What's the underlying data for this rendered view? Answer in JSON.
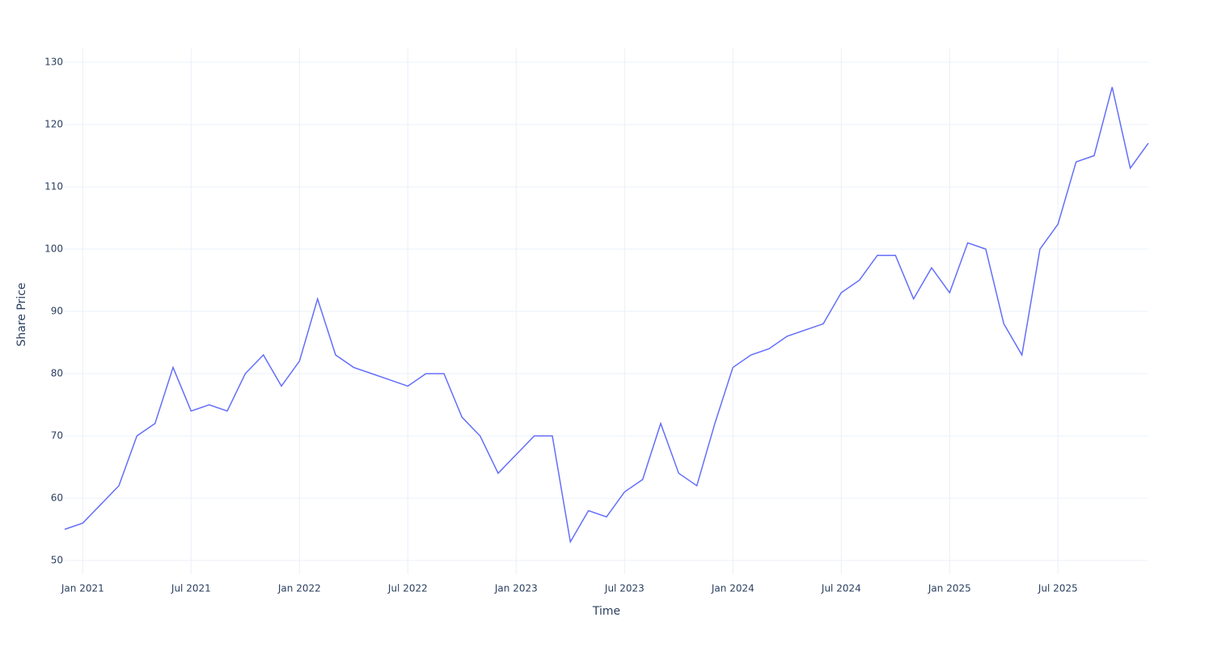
{
  "chart_data": {
    "type": "line",
    "x_label": "Time",
    "y_label": "Share Price",
    "x": [
      "2020-12",
      "2021-01",
      "2021-02",
      "2021-03",
      "2021-04",
      "2021-05",
      "2021-06",
      "2021-07",
      "2021-08",
      "2021-09",
      "2021-10",
      "2021-11",
      "2021-12",
      "2022-01",
      "2022-02",
      "2022-03",
      "2022-04",
      "2022-05",
      "2022-06",
      "2022-07",
      "2022-08",
      "2022-09",
      "2022-10",
      "2022-11",
      "2022-12",
      "2023-01",
      "2023-02",
      "2023-03",
      "2023-04",
      "2023-05",
      "2023-06",
      "2023-07",
      "2023-08",
      "2023-09",
      "2023-10",
      "2023-11",
      "2023-12",
      "2024-01",
      "2024-02",
      "2024-03",
      "2024-04",
      "2024-05",
      "2024-06",
      "2024-07",
      "2024-08",
      "2024-09",
      "2024-10",
      "2024-11",
      "2024-12",
      "2025-01",
      "2025-02",
      "2025-03",
      "2025-04",
      "2025-05",
      "2025-06",
      "2025-07",
      "2025-08",
      "2025-09",
      "2025-10",
      "2025-11",
      "2025-12"
    ],
    "series": [
      {
        "name": "Share Price",
        "color": "#636efa",
        "values": [
          55,
          56,
          59,
          62,
          70,
          72,
          81,
          74,
          75,
          74,
          80,
          83,
          78,
          82,
          92,
          83,
          81,
          80,
          79,
          78,
          80,
          80,
          73,
          70,
          64,
          67,
          70,
          70,
          53,
          58,
          57,
          61,
          63,
          72,
          64,
          62,
          72,
          81,
          83,
          84,
          86,
          87,
          88,
          93,
          95,
          99,
          99,
          92,
          97,
          93,
          101,
          100,
          88,
          83,
          100,
          104,
          114,
          115,
          126,
          113,
          117
        ]
      }
    ],
    "xlim": [
      "2020-12",
      "2025-12"
    ],
    "xticks": [
      {
        "value": "2021-01",
        "label": "Jan 2021"
      },
      {
        "value": "2021-07",
        "label": "Jul 2021"
      },
      {
        "value": "2022-01",
        "label": "Jan 2022"
      },
      {
        "value": "2022-07",
        "label": "Jul 2022"
      },
      {
        "value": "2023-01",
        "label": "Jan 2023"
      },
      {
        "value": "2023-07",
        "label": "Jul 2023"
      },
      {
        "value": "2024-01",
        "label": "Jan 2024"
      },
      {
        "value": "2024-07",
        "label": "Jul 2024"
      },
      {
        "value": "2025-01",
        "label": "Jan 2025"
      },
      {
        "value": "2025-07",
        "label": "Jul 2025"
      }
    ],
    "ylim": [
      47.8,
      132.2
    ],
    "yticks": [
      50,
      60,
      70,
      80,
      90,
      100,
      110,
      120,
      130
    ],
    "grid": true
  }
}
